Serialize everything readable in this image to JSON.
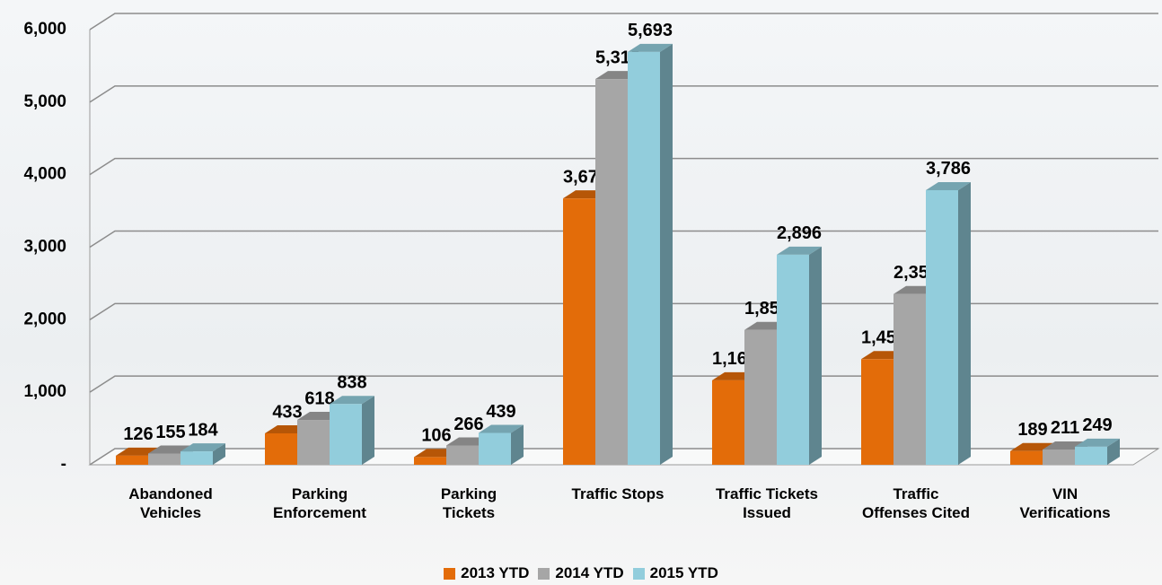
{
  "chart_data": {
    "type": "bar3d",
    "categories": [
      "Abandoned Vehicles",
      "Parking Enforcement",
      "Parking Tickets",
      "Traffic Stops",
      "Traffic Tickets Issued",
      "Traffic Offenses Cited",
      "VIN Verifications"
    ],
    "series": [
      {
        "name": "2013 YTD",
        "color": "#e36c09",
        "values": [
          126,
          433,
          106,
          3672,
          1165,
          1456,
          189
        ],
        "value_labels": [
          "126",
          "433",
          "106",
          "3,672",
          "1,165",
          "1,456",
          "189"
        ]
      },
      {
        "name": "2014 YTD",
        "color": "#a6a6a6",
        "values": [
          155,
          618,
          266,
          5318,
          1859,
          2354,
          211
        ],
        "value_labels": [
          "155",
          "618",
          "266",
          "5,318",
          "1,859",
          "2,354",
          "211"
        ]
      },
      {
        "name": "2015 YTD",
        "color": "#92cddc",
        "values": [
          184,
          838,
          439,
          5693,
          2896,
          3786,
          249
        ],
        "value_labels": [
          "184",
          "838",
          "439",
          "5,693",
          "2,896",
          "3,786",
          "249"
        ]
      }
    ],
    "ylim": [
      0,
      6000
    ],
    "yticks": [
      {
        "value": 0,
        "label": "-"
      },
      {
        "value": 1000,
        "label": "1,000"
      },
      {
        "value": 2000,
        "label": "2,000"
      },
      {
        "value": 3000,
        "label": "3,000"
      },
      {
        "value": 4000,
        "label": "4,000"
      },
      {
        "value": 5000,
        "label": "5,000"
      },
      {
        "value": 6000,
        "label": "6,000"
      }
    ],
    "grid": true,
    "legend": "bottom"
  }
}
